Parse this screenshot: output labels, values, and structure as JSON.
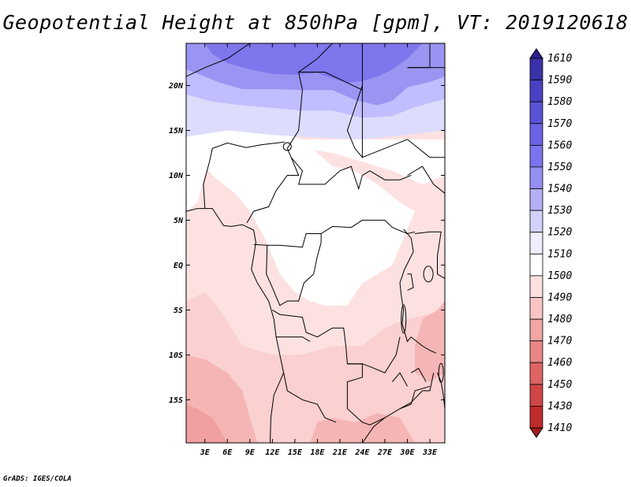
{
  "title": "Geopotential Height at 850hPa [gpm], VT: 2019120618",
  "footer": "GrADS: IGES/COLA",
  "map": {
    "lat_labels": [
      {
        "label": "20N",
        "lat": 20
      },
      {
        "label": "15N",
        "lat": 15
      },
      {
        "label": "10N",
        "lat": 10
      },
      {
        "label": "5N",
        "lat": 5
      },
      {
        "label": "EQ",
        "lat": 0
      },
      {
        "label": "5S",
        "lat": -5
      },
      {
        "label": "10S",
        "lat": -10
      },
      {
        "label": "15S",
        "lat": -15
      }
    ],
    "lon_labels": [
      {
        "label": "3E",
        "lon": 3
      },
      {
        "label": "6E",
        "lon": 6
      },
      {
        "label": "9E",
        "lon": 9
      },
      {
        "label": "12E",
        "lon": 12
      },
      {
        "label": "15E",
        "lon": 15
      },
      {
        "label": "18E",
        "lon": 18
      },
      {
        "label": "21E",
        "lon": 21
      },
      {
        "label": "24E",
        "lon": 24
      },
      {
        "label": "27E",
        "lon": 27
      },
      {
        "label": "30E",
        "lon": 30
      },
      {
        "label": "33E",
        "lon": 33
      }
    ],
    "lon_range": [
      0.5,
      35
    ],
    "lat_range": [
      -19.8,
      24.7
    ]
  },
  "colorbar": {
    "labels": [
      "1610",
      "1590",
      "1580",
      "1570",
      "1560",
      "1550",
      "1540",
      "1530",
      "1520",
      "1510",
      "1500",
      "1490",
      "1480",
      "1470",
      "1460",
      "1450",
      "1430",
      "1410"
    ],
    "colors": [
      "#2a1f8f",
      "#3a30a8",
      "#4b40c2",
      "#5a52d6",
      "#6b63e6",
      "#7c74ee",
      "#958ff3",
      "#b4b0f6",
      "#d3d1fa",
      "#eeeefd",
      "#ffffff",
      "#fde0e0",
      "#f8c4c4",
      "#f1a5a5",
      "#e98585",
      "#de6464",
      "#d04545",
      "#bf2b2b",
      "#a31a1a"
    ]
  },
  "colors": {
    "blue_dark": "#7d76ec",
    "blue_mid": "#9a95f2",
    "blue_light": "#c1beff",
    "blue_pale": "#dedcfc",
    "white": "#ffffff",
    "pink_pale": "#fde1e1",
    "pink": "#fad0d0",
    "pink_mid": "#f6b5b5",
    "red_light": "#f0a0a0"
  }
}
